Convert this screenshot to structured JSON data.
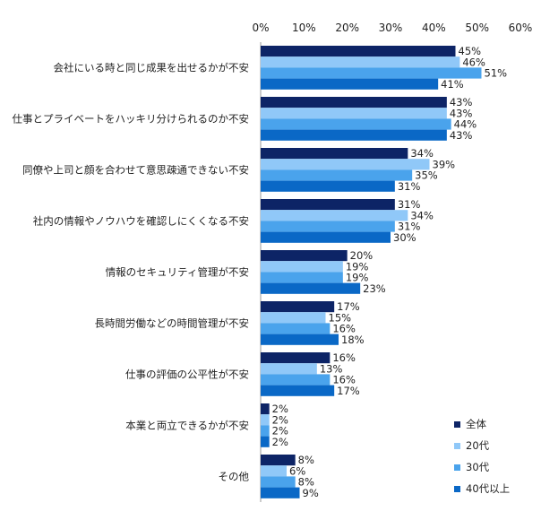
{
  "chart_data": {
    "type": "bar",
    "orientation": "horizontal",
    "title": "",
    "xlabel": "",
    "ylabel": "",
    "xlim": [
      0,
      60
    ],
    "xticks": [
      0,
      10,
      20,
      30,
      40,
      50,
      60
    ],
    "tick_suffix": "%",
    "grid": false,
    "legend_position": "bottom-right",
    "categories": [
      "会社にいる時と同じ成果を出せるかが不安",
      "仕事とプライベートをハッキリ分けられるのか不安",
      "同僚や上司と顔を合わせて意思疎通できない不安",
      "社内の情報やノウハウを確認しにくくなる不安",
      "情報のセキュリティ管理が不安",
      "長時間労働などの時間管理が不安",
      "仕事の評価の公平性が不安",
      "本業と両立できるかが不安",
      "その他"
    ],
    "series": [
      {
        "name": "全体",
        "color": "#0d2466",
        "values": [
          45,
          43,
          34,
          31,
          20,
          17,
          16,
          2,
          8
        ]
      },
      {
        "name": "20代",
        "color": "#90c8f8",
        "values": [
          46,
          43,
          39,
          34,
          19,
          15,
          13,
          2,
          6
        ]
      },
      {
        "name": "30代",
        "color": "#4aa3ec",
        "values": [
          51,
          44,
          35,
          31,
          19,
          16,
          16,
          2,
          8
        ]
      },
      {
        "name": "40代以上",
        "color": "#0a68c6",
        "values": [
          41,
          43,
          31,
          30,
          23,
          18,
          17,
          2,
          9
        ]
      }
    ]
  }
}
